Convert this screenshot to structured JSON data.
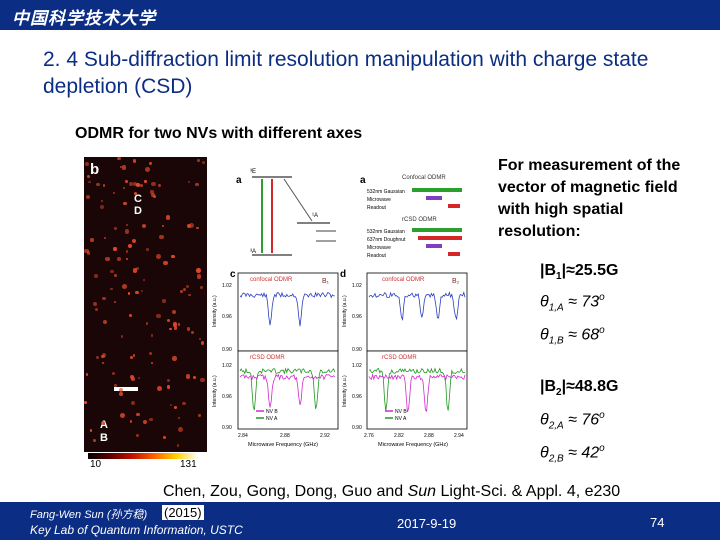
{
  "header": {
    "logo_text": "中国科学技术大学"
  },
  "slide": {
    "title": "2. 4 Sub-diffraction limit resolution manipulation with charge state depletion (CSD)",
    "subtitle": "ODMR for two NVs with different axes"
  },
  "figure": {
    "panel_b_letter": "b",
    "panel_a_letter": "a",
    "panel_c_letter": "c",
    "panel_d_letter": "d",
    "label_C": "C",
    "label_D": "D",
    "label_A": "A",
    "label_B": "B",
    "colorbar_min": "10",
    "colorbar_max": "131",
    "a_row1_title": "Confocal ODMR",
    "a_row1_items": [
      "532nm Gaussian",
      "Microwave",
      "Readout"
    ],
    "a_row2_title": "rCSD ODMR",
    "a_row2_items": [
      "532nm Gaussian",
      "637nm Doughnut",
      "Microwave",
      "Readout"
    ],
    "a_state_top": "³E",
    "a_state_right": "¹A",
    "a_state_bottom": "³A",
    "c_top_title": "confocal ODMR",
    "c_bot_title": "rCSD ODMR",
    "d_top_title": "confocal ODMR",
    "d_bot_title": "rCSD ODMR",
    "c_top_b": "B₁",
    "d_top_b": "B₂",
    "y_axis_label": "Intensity (a.u.)",
    "y_ticks": [
      "1.02",
      "0.96",
      "0.90"
    ],
    "c_x_ticks": [
      "2.84",
      "2.88",
      "2.92"
    ],
    "d_x_ticks": [
      "2.76",
      "2.82",
      "2.88",
      "2.94"
    ],
    "x_axis_label": "Microwave Frequency (GHz)",
    "legend_nv_b": "NV B",
    "legend_nv_a": "NV A"
  },
  "text_block": "For measurement of the vector of magnetic field with high spatial resolution:",
  "equations": {
    "b1_mag": {
      "pre": "|B",
      "sub": "1",
      "post": "|≈25.5G"
    },
    "t1a": {
      "sym": "θ",
      "sub": "1,A",
      "post": " ≈ 73",
      "sup": "o"
    },
    "t1b": {
      "sym": "θ",
      "sub": "1,B",
      "post": " ≈ 68",
      "sup": "o"
    },
    "b2_mag": {
      "pre": "|B",
      "sub": "2",
      "post": "|≈48.8G"
    },
    "t2a": {
      "sym": "θ",
      "sub": "2,A",
      "post": " ≈ 76",
      "sup": "o"
    },
    "t2b": {
      "sym": "θ",
      "sub": "2,B",
      "post": " ≈ 42",
      "sup": "o"
    }
  },
  "citation": {
    "authors": "Chen, Zou, Gong, Dong, Guo and ",
    "sun": "Sun",
    "journal": " Light-Sci. & Appl. 4, e230"
  },
  "footer": {
    "author": "Fang-Wen Sun (孙方稳)",
    "year": "(2015)",
    "lab": "Key Lab of Quantum Information, USTC",
    "date": "2017-9-19",
    "page": "74"
  },
  "colors": {
    "brand_blue": "#0b2d83",
    "nv_a_green": "#1e9a1e",
    "nv_b_magenta": "#d12ad1"
  }
}
